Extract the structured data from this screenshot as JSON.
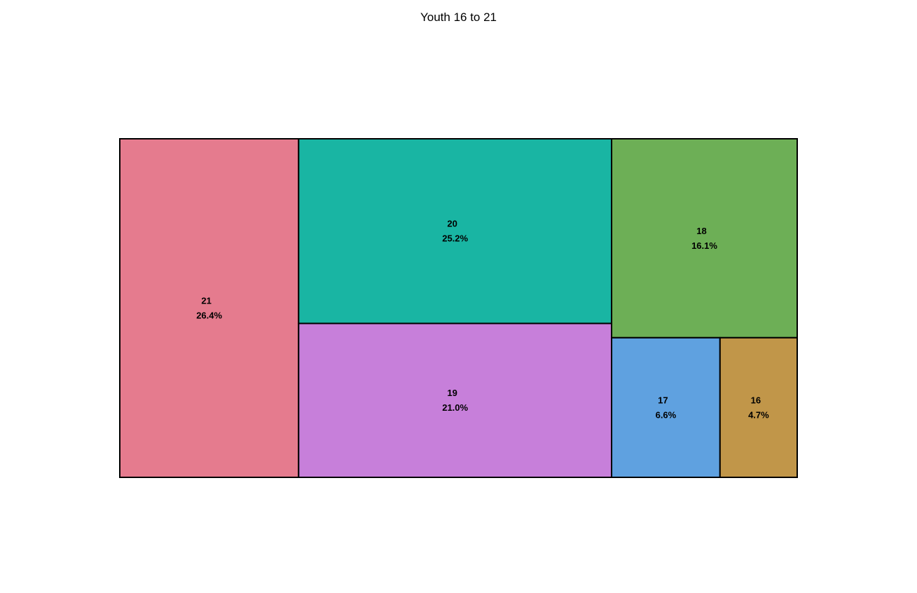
{
  "chart_data": {
    "type": "treemap",
    "title": "Youth 16 to 21",
    "tiles": [
      {
        "label": "21",
        "value": 26.4,
        "pct_label": "26.4%",
        "color": "#E57B8E"
      },
      {
        "label": "20",
        "value": 25.2,
        "pct_label": "25.2%",
        "color": "#19B5A3"
      },
      {
        "label": "19",
        "value": 21.0,
        "pct_label": "21.0%",
        "color": "#C77FDA"
      },
      {
        "label": "18",
        "value": 16.1,
        "pct_label": "16.1%",
        "color": "#6DAF56"
      },
      {
        "label": "17",
        "value": 6.6,
        "pct_label": "6.6%",
        "color": "#5FA1E0"
      },
      {
        "label": "16",
        "value": 4.7,
        "pct_label": "4.7%",
        "color": "#C19649"
      }
    ],
    "border_color": "#000000"
  }
}
